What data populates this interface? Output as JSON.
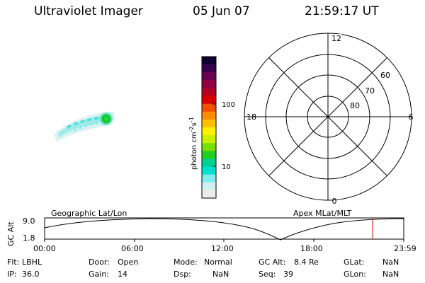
{
  "header": {
    "instrument": "Ultraviolet Imager",
    "date": "05 Jun 07",
    "time": "21:59:17 UT"
  },
  "colorbar": {
    "unit_label": "photon cm",
    "unit_exp1": "-2",
    "unit_s": "s",
    "unit_exp2": "-1",
    "tick_100": "100",
    "tick_10": "10",
    "colors": [
      "#0d0030",
      "#3a0050",
      "#6a0050",
      "#8e0040",
      "#b40020",
      "#d80000",
      "#f05000",
      "#ff8c00",
      "#ffc000",
      "#fff000",
      "#c8f000",
      "#78e000",
      "#20d020",
      "#00d090",
      "#00e0d0",
      "#80ecec",
      "#d0f0f0",
      "#ececec"
    ]
  },
  "polar": {
    "mlt_top": "12",
    "mlt_left": "18",
    "mlt_right": "6",
    "mlt_bottom": "0",
    "lat_60": "60",
    "lat_70": "70",
    "lat_80": "80"
  },
  "timeline": {
    "left_title": "Geographic Lat/Lon",
    "right_title": "Apex MLat/MLT",
    "ylabel": "GC Alt",
    "ytick_top": "9.0",
    "ytick_bottom": "1.8",
    "xticks": [
      "00:00",
      "06:00",
      "12:00",
      "18:00",
      "23:59"
    ],
    "marker_color": "#e00000"
  },
  "info": {
    "flt_label": "Flt:",
    "flt_value": "LBHL",
    "ip_label": "IP:",
    "ip_value": "36.0",
    "door_label": "Door:",
    "door_value": "Open",
    "gain_label": "Gain:",
    "gain_value": "14",
    "mode_label": "Mode:",
    "mode_value": "Normal",
    "dsp_label": "Dsp:",
    "dsp_value": "NaN",
    "gcalt_label": "GC Alt:",
    "gcalt_value": "8.4 Re",
    "seq_label": "Seq:",
    "seq_value": "39",
    "glat_label": "GLat:",
    "glat_value": "NaN",
    "glon_label": "GLon:",
    "glon_value": "NaN"
  }
}
